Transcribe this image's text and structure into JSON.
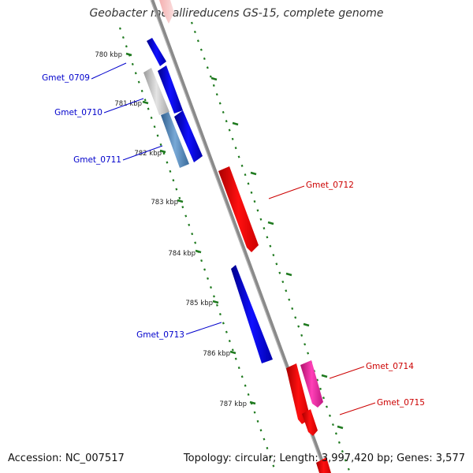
{
  "title": "Geobacter metallireducens GS-15, complete genome",
  "footer": {
    "accession": "Accession: NC_007517",
    "summary": "Topology: circular; Length: 3,997,420 bp; Genes: 3,577"
  },
  "scale_ticks": [
    "780 kbp",
    "781 kbp",
    "782 kbp",
    "783 kbp",
    "784 kbp",
    "785 kbp",
    "786 kbp",
    "787 kbp"
  ],
  "genes": [
    {
      "label": "Gmet_0709",
      "strand": "minus"
    },
    {
      "label": "Gmet_0710",
      "strand": "minus"
    },
    {
      "label": "Gmet_0711",
      "strand": "minus"
    },
    {
      "label": "Gmet_0712",
      "strand": "plus"
    },
    {
      "label": "Gmet_0713",
      "strand": "minus"
    },
    {
      "label": "Gmet_0714",
      "strand": "plus"
    },
    {
      "label": "Gmet_0715",
      "strand": "plus"
    }
  ],
  "colors": {
    "backbone": "#8c8c8c",
    "minus_strand": "#0000ee",
    "plus_strand": "#ee0000",
    "highlight_pink": "#ee2fa8",
    "steel_blue": "#5b8fbf",
    "gray_feature": "#c8c8c8",
    "tick_green": "#1f7a1f",
    "minus_label": "#0000cc",
    "plus_label": "#cc0000"
  }
}
